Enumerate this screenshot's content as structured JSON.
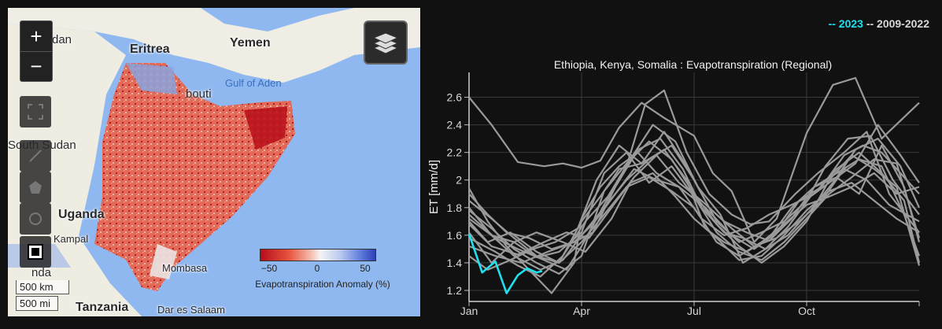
{
  "map": {
    "controls": {
      "zoom_in": "+",
      "zoom_out": "−"
    },
    "labels": {
      "sudan": "dan",
      "eritrea": "Eritrea",
      "yemen": "Yemen",
      "gulf": "Gulf of Aden",
      "djibouti": "bouti",
      "south_sudan": "South Sudan",
      "uganda": "Uganda",
      "kampala": "Kampal",
      "kenya_partial": "nda",
      "mombasa": "Mombasa",
      "tanzania": "Tanzania",
      "dar": "Dar es Salaam"
    },
    "scale": {
      "km": "500 km",
      "mi": "500 mi"
    },
    "legend": {
      "ticks": [
        "−50",
        "0",
        "50"
      ],
      "title": "Evapotranspiration Anomaly (%)"
    },
    "colors": {
      "ocean": "#8fb8f0",
      "land": "#f0ede4",
      "anomaly_low": "#b40d1c",
      "anomaly_high": "#2e3fb8"
    }
  },
  "chart": {
    "legend_current": "-- 2023",
    "legend_history": "-- 2009-2022",
    "title": "Ethiopia, Kenya, Somalia : Evapotranspiration (Regional)",
    "colors": {
      "current": "#1fe0ef",
      "history": "#9a9a9a",
      "background": "#111111"
    }
  },
  "chart_data": {
    "type": "line",
    "title": "Ethiopia, Kenya, Somalia : Evapotranspiration (Regional)",
    "ylabel": "ET [mm/d]",
    "xlabel": "",
    "x_ticks": [
      "Jan",
      "Apr",
      "Jul",
      "Oct"
    ],
    "x_tick_positions": [
      0,
      3,
      6,
      9
    ],
    "xlim": [
      0,
      12
    ],
    "y_ticks": [
      "1.2",
      "1.4",
      "1.6",
      "1.8",
      "2",
      "2.2",
      "2.4",
      "2.6"
    ],
    "ylim": [
      1.12,
      2.78
    ],
    "grid": true,
    "series": [
      {
        "name": "2023",
        "current": true,
        "x": [
          0,
          0.35,
          0.7,
          1.0,
          1.3,
          1.55,
          1.8,
          1.95
        ],
        "y": [
          1.61,
          1.33,
          1.41,
          1.18,
          1.31,
          1.36,
          1.33,
          1.34
        ]
      },
      {
        "x": [
          0,
          0.6,
          1.3,
          2.0,
          2.5,
          3.0,
          3.5,
          4.0,
          4.6,
          5.2,
          6.0,
          6.5,
          7.0,
          7.6,
          8.2,
          9.0,
          9.7,
          10.3,
          11.0,
          12.0
        ],
        "y": [
          2.6,
          2.4,
          2.13,
          2.1,
          2.12,
          2.09,
          2.14,
          2.38,
          2.56,
          2.45,
          2.32,
          2.05,
          1.92,
          1.55,
          1.72,
          2.34,
          2.69,
          2.74,
          2.3,
          2.56
        ]
      },
      {
        "x": [
          0,
          0.5,
          1.0,
          1.6,
          2.2,
          2.8,
          3.0,
          3.5,
          4.0,
          4.5,
          5.0,
          5.6,
          6.3,
          7.0,
          7.6,
          8.2,
          8.8,
          9.4,
          10.0,
          10.5,
          11.0,
          11.5,
          12.0
        ],
        "y": [
          1.94,
          1.7,
          1.52,
          1.35,
          1.18,
          1.4,
          1.72,
          1.95,
          2.1,
          2.2,
          2.05,
          1.95,
          1.8,
          1.6,
          1.5,
          1.62,
          1.85,
          1.95,
          2.18,
          2.25,
          2.2,
          2.05,
          1.9
        ]
      },
      {
        "x": [
          0,
          0.7,
          1.3,
          2.0,
          2.6,
          3.0,
          3.6,
          4.2,
          4.7,
          5.2,
          5.8,
          6.4,
          7.0,
          7.5,
          8.0,
          8.7,
          9.3,
          10.0,
          10.6,
          11.2,
          12.0
        ],
        "y": [
          1.75,
          1.58,
          1.5,
          1.42,
          1.35,
          1.52,
          1.82,
          2.1,
          2.55,
          2.65,
          2.2,
          1.9,
          1.75,
          1.68,
          1.7,
          1.9,
          2.05,
          2.2,
          2.35,
          1.9,
          1.62
        ]
      },
      {
        "x": [
          0,
          0.5,
          1.1,
          1.8,
          2.4,
          3.0,
          3.5,
          4.0,
          4.6,
          5.2,
          5.8,
          6.3,
          6.8,
          7.4,
          8.0,
          8.6,
          9.2,
          9.8,
          10.4,
          11.0,
          11.6,
          12.0
        ],
        "y": [
          1.7,
          1.55,
          1.62,
          1.48,
          1.4,
          1.7,
          1.88,
          2.08,
          2.12,
          2.22,
          2.0,
          1.65,
          1.55,
          1.48,
          1.58,
          1.8,
          1.95,
          2.05,
          2.15,
          2.1,
          1.75,
          1.45
        ]
      },
      {
        "x": [
          0,
          0.6,
          1.2,
          1.8,
          2.5,
          3.1,
          3.8,
          4.3,
          4.9,
          5.5,
          6.0,
          6.6,
          7.2,
          7.8,
          8.4,
          9.0,
          9.6,
          10.2,
          10.8,
          11.4,
          12.0
        ],
        "y": [
          1.62,
          1.4,
          1.55,
          1.62,
          1.55,
          1.48,
          1.72,
          1.98,
          2.05,
          1.88,
          1.72,
          1.58,
          1.42,
          1.45,
          1.6,
          1.78,
          1.92,
          1.98,
          1.85,
          1.72,
          1.62
        ]
      },
      {
        "x": [
          0,
          0.7,
          1.4,
          2.1,
          2.8,
          3.3,
          3.9,
          4.5,
          5.1,
          5.7,
          6.2,
          6.8,
          7.3,
          7.9,
          8.5,
          9.1,
          9.7,
          10.3,
          10.9,
          11.5,
          12.0
        ],
        "y": [
          1.52,
          1.45,
          1.4,
          1.48,
          1.55,
          1.62,
          1.95,
          2.22,
          2.3,
          2.08,
          1.8,
          1.62,
          1.58,
          1.5,
          1.66,
          1.88,
          2.0,
          2.12,
          2.4,
          2.18,
          1.98
        ]
      },
      {
        "x": [
          0,
          0.6,
          1.2,
          1.9,
          2.5,
          3.0,
          3.6,
          4.2,
          4.8,
          5.4,
          6.0,
          6.6,
          7.2,
          7.8,
          8.4,
          9.0,
          9.5,
          10.1,
          10.7,
          11.3,
          12.0
        ],
        "y": [
          1.8,
          1.6,
          1.45,
          1.35,
          1.42,
          1.6,
          1.8,
          2.0,
          2.15,
          2.25,
          2.0,
          1.7,
          1.55,
          1.62,
          1.7,
          1.85,
          2.1,
          2.3,
          2.32,
          2.0,
          1.75
        ]
      },
      {
        "x": [
          0,
          0.5,
          1.0,
          1.6,
          2.2,
          2.8,
          3.3,
          3.9,
          4.4,
          5.0,
          5.6,
          6.2,
          6.8,
          7.4,
          8.0,
          8.6,
          9.2,
          9.8,
          10.4,
          11.0,
          11.6,
          12.0
        ],
        "y": [
          1.9,
          1.75,
          1.62,
          1.58,
          1.5,
          1.55,
          1.68,
          1.9,
          2.08,
          2.0,
          1.95,
          1.72,
          1.6,
          1.65,
          1.75,
          1.82,
          1.9,
          2.08,
          2.2,
          2.05,
          1.85,
          1.4
        ]
      },
      {
        "x": [
          0,
          0.6,
          1.3,
          2.0,
          2.6,
          3.2,
          3.8,
          4.4,
          5.0,
          5.6,
          6.2,
          6.8,
          7.4,
          8.0,
          8.6,
          9.2,
          9.8,
          10.4,
          11.0,
          11.6,
          12.0
        ],
        "y": [
          1.68,
          1.52,
          1.46,
          1.55,
          1.62,
          1.58,
          1.8,
          2.02,
          2.18,
          1.98,
          1.85,
          1.7,
          1.62,
          1.56,
          1.72,
          1.95,
          2.02,
          1.9,
          2.25,
          1.95,
          1.55
        ]
      },
      {
        "x": [
          0,
          0.5,
          1.1,
          1.7,
          2.3,
          2.9,
          3.4,
          4.0,
          4.6,
          5.2,
          5.8,
          6.4,
          7.0,
          7.6,
          8.2,
          8.8,
          9.4,
          10.0,
          10.6,
          11.2,
          12.0
        ],
        "y": [
          1.45,
          1.35,
          1.42,
          1.5,
          1.55,
          1.65,
          2.0,
          2.25,
          2.12,
          2.35,
          2.1,
          1.8,
          1.65,
          1.52,
          1.58,
          1.7,
          1.85,
          2.08,
          2.0,
          1.82,
          1.7
        ]
      },
      {
        "x": [
          0,
          0.7,
          1.3,
          1.9,
          2.5,
          3.1,
          3.7,
          4.3,
          4.9,
          5.5,
          6.1,
          6.7,
          7.3,
          7.9,
          8.5,
          9.1,
          9.7,
          10.3,
          10.9,
          11.5,
          12.0
        ],
        "y": [
          1.58,
          1.48,
          1.38,
          1.3,
          1.45,
          1.7,
          1.88,
          2.15,
          2.4,
          2.28,
          1.95,
          1.75,
          1.4,
          1.5,
          1.6,
          1.78,
          1.98,
          2.22,
          2.3,
          2.1,
          1.8
        ]
      },
      {
        "x": [
          0,
          0.6,
          1.2,
          1.8,
          2.4,
          3.0,
          3.6,
          4.2,
          4.8,
          5.4,
          6.0,
          6.6,
          7.2,
          7.8,
          8.4,
          9.0,
          9.6,
          10.2,
          10.8,
          11.4,
          12.0
        ],
        "y": [
          1.72,
          1.6,
          1.55,
          1.44,
          1.48,
          1.62,
          2.05,
          2.2,
          1.98,
          2.1,
          1.88,
          1.62,
          1.48,
          1.42,
          1.55,
          1.72,
          1.9,
          2.02,
          2.15,
          2.12,
          1.58
        ]
      },
      {
        "x": [
          0,
          0.6,
          1.2,
          1.8,
          2.4,
          3.0,
          3.6,
          4.2,
          4.8,
          5.4,
          6.0,
          6.6,
          7.2,
          7.8,
          8.4,
          9.0,
          9.6,
          10.2,
          10.8,
          11.4,
          12.0
        ],
        "y": [
          1.85,
          1.72,
          1.58,
          1.45,
          1.4,
          1.55,
          1.75,
          1.95,
          2.02,
          1.92,
          1.8,
          1.55,
          1.45,
          1.55,
          1.68,
          1.82,
          1.88,
          1.95,
          2.05,
          1.9,
          1.95
        ]
      },
      {
        "x": [
          0,
          0.6,
          1.2,
          1.8,
          2.4,
          3.0,
          3.6,
          4.2,
          4.8,
          5.4,
          6.0,
          6.6,
          7.2,
          7.8,
          8.4,
          9.0,
          9.6,
          10.2,
          10.8,
          11.4,
          12.0
        ],
        "y": [
          1.78,
          1.65,
          1.5,
          1.4,
          1.32,
          1.45,
          1.92,
          2.12,
          2.28,
          2.15,
          1.9,
          1.68,
          1.52,
          1.4,
          1.52,
          1.7,
          2.0,
          2.18,
          2.08,
          1.95,
          1.38
        ]
      }
    ]
  }
}
